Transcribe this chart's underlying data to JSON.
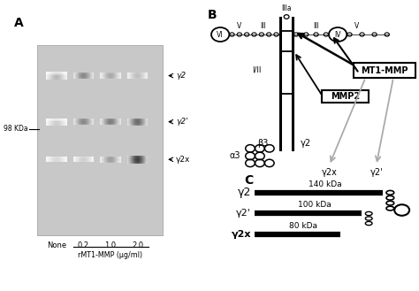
{
  "bg_color": "#ffffff",
  "panel_a_label": "A",
  "panel_b_label": "B",
  "panel_c_label": "C",
  "lanes": [
    "None",
    "0.2",
    "1.0",
    "2.0"
  ],
  "xlabel": "rMT1-MMP (μg/ml)",
  "band_labels": [
    "γ2",
    "γ2'",
    "γ2x"
  ],
  "kda_label": "98 KDa",
  "mt1mmp_label": "MT1-MMP",
  "mmp2_label": "MMP2",
  "fragment_labels": [
    "γ2",
    "γ2'",
    "γ2x"
  ],
  "fragment_sizes": [
    "140 kDa",
    "100 kDa",
    "80 kDa"
  ],
  "cleavage_labels": [
    "γ2x",
    "γ2'"
  ],
  "struct_b3": "β3",
  "struct_g2": "γ2",
  "struct_a3": "α3",
  "struct_iii": "I/II",
  "gel_bg": "#cccccc"
}
